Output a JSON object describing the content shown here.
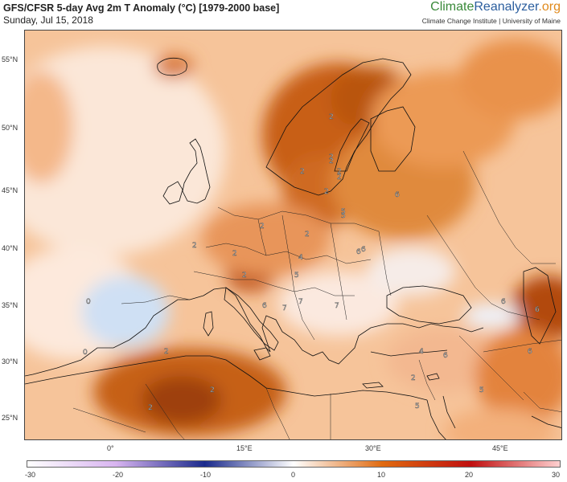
{
  "header": {
    "title": "GFS/CFSR 5-day Avg 2m T Anomaly (°C) [1979-2000 base]",
    "date": "Sunday, Jul 15, 2018",
    "brand_part1": "Climate",
    "brand_part2": "Reanalyzer",
    "brand_part3": ".org",
    "institution": "Climate Change Institute | University of Maine"
  },
  "map": {
    "lat_labels": [
      "55°N",
      "50°N",
      "45°N",
      "40°N",
      "35°N",
      "30°N",
      "25°N"
    ],
    "lon_labels": [
      "0°",
      "15°E",
      "30°E",
      "45°E"
    ],
    "contour_labels": [
      "2",
      "2",
      "2",
      "2",
      "2",
      "2",
      "2",
      "2",
      "2",
      "2",
      "2",
      "5",
      "6",
      "6",
      "6",
      "6",
      "6",
      "2",
      "2",
      "2",
      "5",
      "5",
      "4",
      "4",
      "5",
      "6",
      "7",
      "7",
      "7",
      "6",
      "6",
      "0",
      "0",
      "2",
      "2",
      "5"
    ]
  },
  "colorbar": {
    "ticks": [
      "-30",
      "-20",
      "-10",
      "0",
      "10",
      "20",
      "30"
    ],
    "colors": [
      "#ffffff",
      "#d8b4f0",
      "#1a2a8c",
      "#ffffff",
      "#e06a10",
      "#c01010",
      "#ffd0d0"
    ]
  }
}
